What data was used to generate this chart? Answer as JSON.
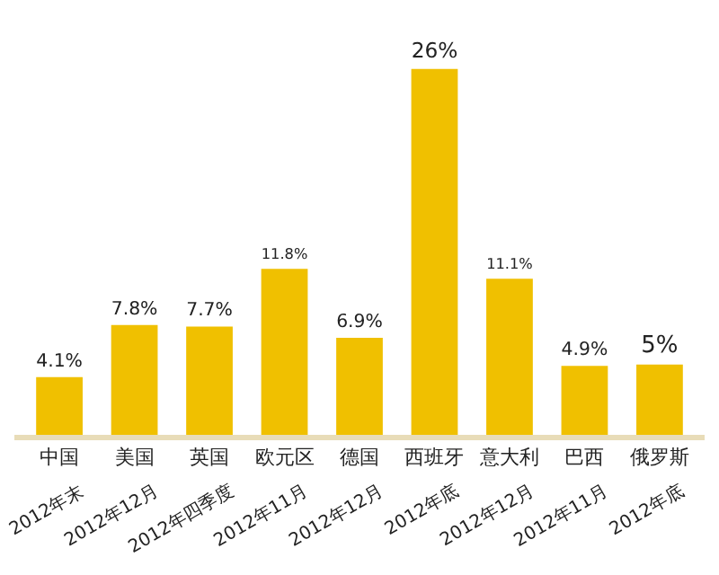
{
  "chart_data": {
    "type": "bar",
    "categories": [
      "中国",
      "美国",
      "英国",
      "欧元区",
      "德国",
      "西班牙",
      "意大利",
      "巴西",
      "俄罗斯"
    ],
    "values": [
      4.1,
      7.8,
      7.7,
      11.8,
      6.9,
      26,
      11.1,
      4.9,
      5
    ],
    "value_labels": [
      "4.1%",
      "7.8%",
      "7.7%",
      "11.8%",
      "6.9%",
      "26%",
      "11.1%",
      "4.9%",
      "5%"
    ],
    "color": "#f0c000",
    "annotations": [
      "2012年末",
      "2012年12月",
      "2012年四季度",
      "2012年11月",
      "2012年12月",
      "2012年底",
      "2012年12月",
      "2012年11月",
      "2012年底"
    ],
    "legend": false
  }
}
